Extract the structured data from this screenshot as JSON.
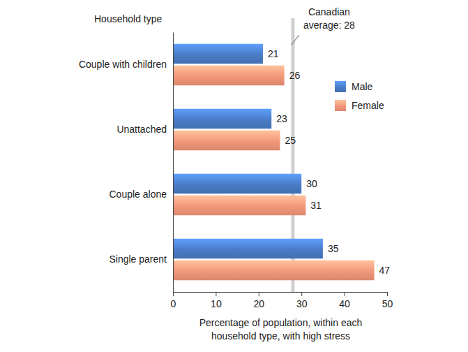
{
  "chart_data": {
    "type": "bar",
    "orientation": "horizontal",
    "y_label": "Household type",
    "x_label": [
      "Percentage of population, within each",
      "household type, with high stress"
    ],
    "categories": [
      "Couple with children",
      "Unattached",
      "Couple alone",
      "Single parent"
    ],
    "series": [
      {
        "name": "Male",
        "color": "#4a7cc6",
        "values": [
          21,
          23,
          30,
          35
        ]
      },
      {
        "name": "Female",
        "color": "#f3977a",
        "values": [
          26,
          25,
          31,
          47
        ]
      }
    ],
    "xlim": [
      0,
      50
    ],
    "xticks": [
      0,
      10,
      20,
      30,
      40,
      50
    ],
    "grid": false,
    "legend": "upper right",
    "data_labels": true,
    "annotations": [
      {
        "text": [
          "Canadian",
          "average: 28"
        ],
        "x": 28
      }
    ]
  }
}
